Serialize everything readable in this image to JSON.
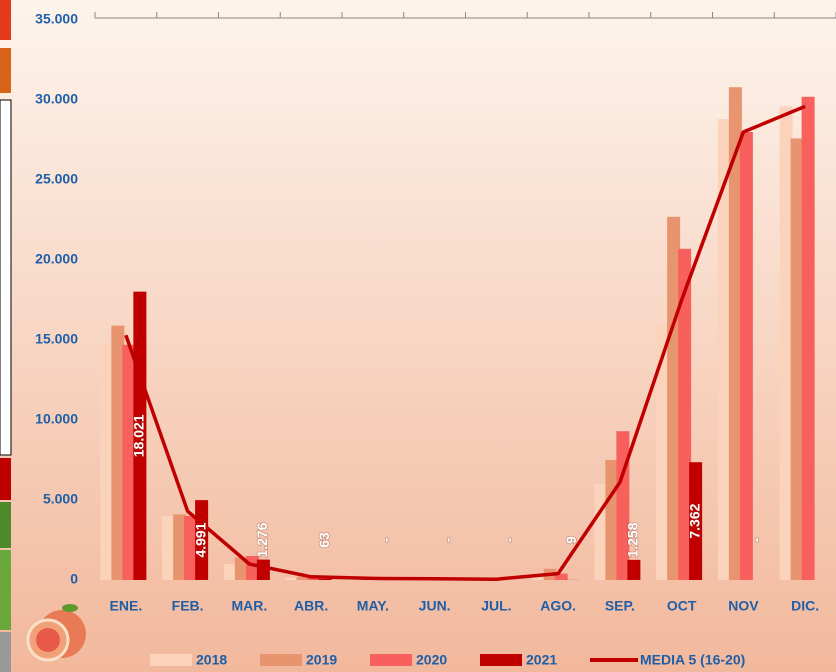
{
  "chart_data": {
    "type": "bar",
    "categories": [
      "ENE.",
      "FEB.",
      "MAR.",
      "ABR.",
      "MAY.",
      "JUN.",
      "JUL.",
      "AGO.",
      "SEP.",
      "OCT",
      "NOV",
      "DIC."
    ],
    "ylim": [
      0,
      35000
    ],
    "yticks": [
      0,
      {
        "value": 5000,
        "label": "5.000"
      },
      {
        "value": 10000,
        "label": "10.000"
      },
      {
        "value": 15000,
        "label": "15.000"
      },
      {
        "value": 20000,
        "label": "20.000"
      },
      {
        "value": 25000,
        "label": "25.000"
      },
      {
        "value": 30000,
        "label": "30.000"
      },
      {
        "value": 35000,
        "label": "35.000"
      }
    ],
    "series": [
      {
        "name": "2018",
        "color": "#fbd3ba",
        "values": [
          14800,
          4000,
          1000,
          150,
          50,
          30,
          20,
          300,
          6000,
          16000,
          28800,
          29600
        ]
      },
      {
        "name": "2019",
        "color": "#e8956f",
        "values": [
          15900,
          4100,
          1400,
          200,
          50,
          30,
          20,
          700,
          7500,
          22700,
          30800,
          27600
        ]
      },
      {
        "name": "2020",
        "color": "#f8605d",
        "values": [
          14700,
          4000,
          1500,
          150,
          50,
          30,
          20,
          400,
          9300,
          20700,
          28000,
          30200
        ]
      },
      {
        "name": "2021",
        "color": "#c00000",
        "values": [
          18021,
          4991,
          1276,
          63,
          0,
          0,
          0,
          9,
          1258,
          7362,
          0,
          null
        ],
        "value_labels": [
          "18.021",
          "4.991",
          "1.276",
          "63",
          "-",
          "-",
          "-",
          "9",
          "1.258",
          "7.362",
          "-",
          null
        ]
      },
      {
        "name": "MEDIA 5 (16-20)",
        "color": "#c00000",
        "type": "line",
        "values": [
          15300,
          4300,
          1000,
          200,
          100,
          80,
          50,
          400,
          6100,
          17500,
          28000,
          29600
        ]
      }
    ]
  }
}
